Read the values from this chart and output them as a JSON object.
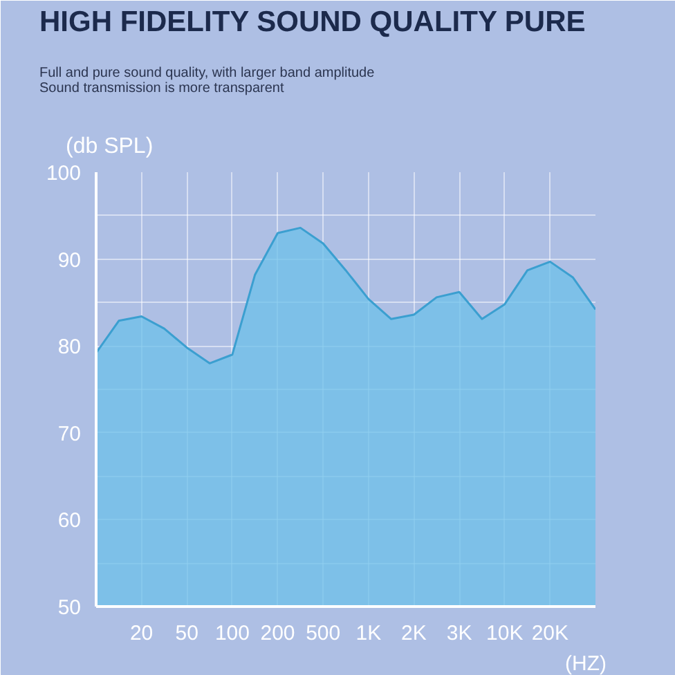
{
  "chart_data": {
    "type": "area",
    "title": "HIGH FIDELITY SOUND QUALITY PURE",
    "subtitle": "Full and pure sound quality, with larger band amplitude\nSound transmission is more transparent",
    "ylabel": "(db SPL)",
    "xlabel": "(HZ)",
    "categories": [
      null,
      null,
      "20",
      null,
      "50",
      null,
      "100",
      null,
      "200",
      null,
      "500",
      null,
      "1K",
      null,
      "2K",
      null,
      "3K",
      null,
      "10K",
      null,
      "20K",
      null,
      null
    ],
    "series": [
      {
        "color": "#6cc0ea",
        "values": [
          79.2,
          82.9,
          83.4,
          82.0,
          79.8,
          78.0,
          79.0,
          88.2,
          93.0,
          93.6,
          91.8,
          88.7,
          85.4,
          83.1,
          83.6,
          85.6,
          86.2,
          83.1,
          84.8,
          88.7,
          89.7,
          87.9,
          84.2
        ]
      }
    ],
    "ylim": [
      50,
      100
    ],
    "yticks": [
      50,
      {
        "value": 55,
        "label": null
      },
      60,
      {
        "value": 65,
        "label": null
      },
      70,
      {
        "value": 75,
        "label": null
      },
      80,
      {
        "value": 85,
        "label": null
      },
      90,
      {
        "value": 95,
        "label": null
      },
      100
    ],
    "grid": true
  }
}
